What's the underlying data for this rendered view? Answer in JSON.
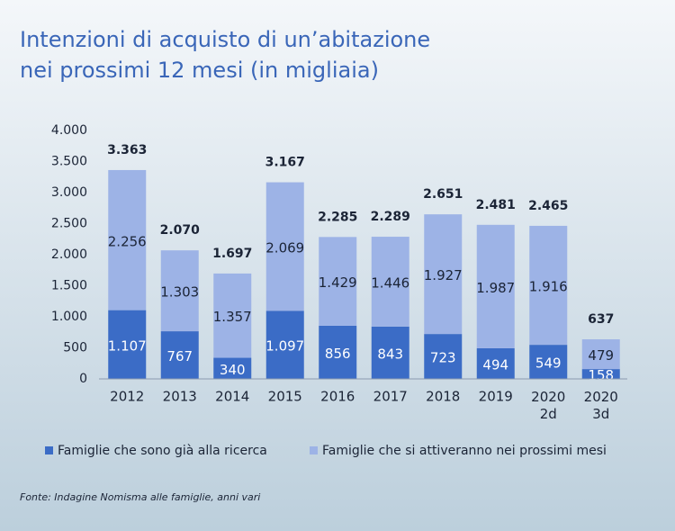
{
  "chart_data": {
    "type": "stacked_bar",
    "title": [
      "Intenzioni di acquisto di un’abitazione",
      "nei prossimi 12 mesi (in migliaia)"
    ],
    "categories": [
      "2012",
      "2013",
      "2014",
      "2015",
      "2016",
      "2017",
      "2018",
      "2019",
      "2020\n2d",
      "2020\n3d"
    ],
    "series": [
      {
        "name": "Famiglie che sono già alla ricerca",
        "color": "#3b6cc6",
        "values": [
          1107,
          767,
          340,
          1097,
          856,
          843,
          723,
          494,
          549,
          158
        ],
        "value_labels": [
          "1.107",
          "767",
          "340",
          "1.097",
          "856",
          "843",
          "723",
          "494",
          "549",
          "158"
        ]
      },
      {
        "name": "Famiglie che si attiveranno nei prossimi mesi",
        "color": "#9db3e6",
        "values": [
          2256,
          1303,
          1357,
          2069,
          1429,
          1446,
          1927,
          1987,
          1916,
          479
        ],
        "value_labels": [
          "2.256",
          "1.303",
          "1.357",
          "2.069",
          "1.429",
          "1.446",
          "1.927",
          "1.987",
          "1.916",
          "479"
        ]
      }
    ],
    "totals": {
      "values": [
        3363,
        2070,
        1697,
        3167,
        2285,
        2289,
        2651,
        2481,
        2465,
        637
      ],
      "value_labels": [
        "3.363",
        "2.070",
        "1.697",
        "3.167",
        "2.285",
        "2.289",
        "2.651",
        "2.481",
        "2.465",
        "637"
      ]
    },
    "ylim": [
      0,
      4000
    ],
    "yticks": [
      0,
      500,
      {
        "value": 1000,
        "label": "1.000"
      },
      {
        "value": 1500,
        "label": "1.500"
      },
      {
        "value": 2000,
        "label": "2.000"
      },
      {
        "value": 2500,
        "label": "2.500"
      },
      {
        "value": 3000,
        "label": "3.000"
      },
      {
        "value": 3500,
        "label": "3.500"
      },
      {
        "value": 4000,
        "label": "4.000"
      }
    ],
    "grid": false,
    "legend": "bottom",
    "source": "Fonte: Indagine Nomisma alle famiglie, anni vari"
  }
}
